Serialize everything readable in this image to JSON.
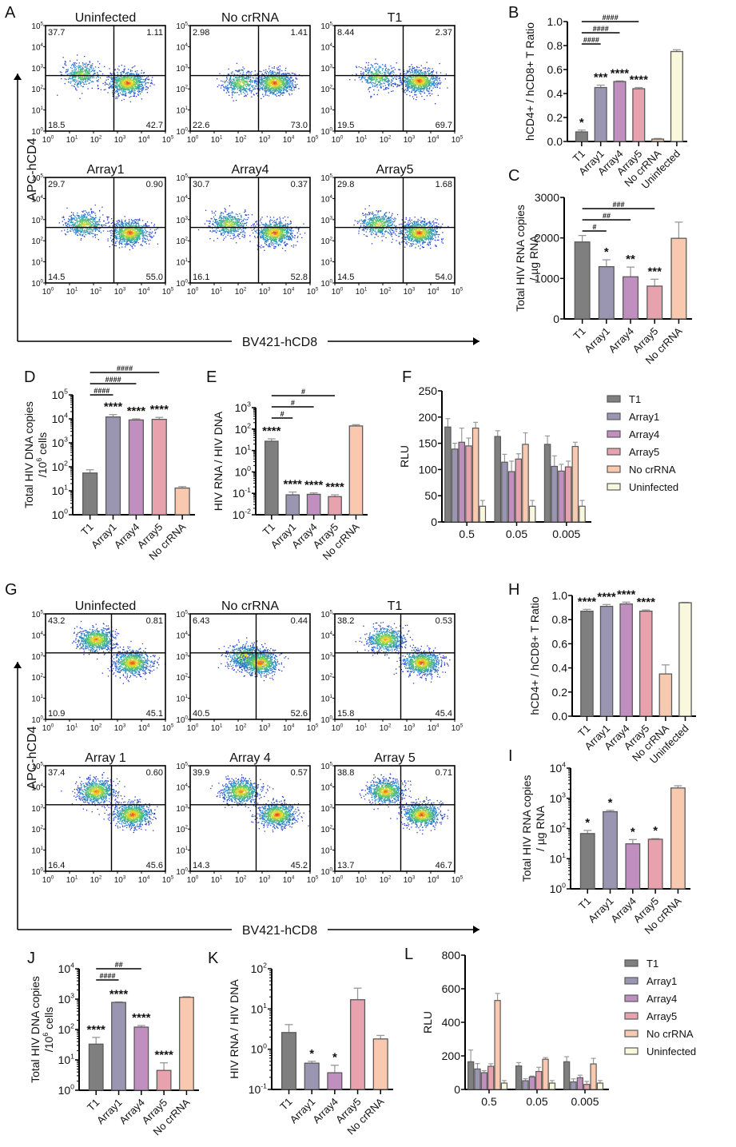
{
  "colors": {
    "T1": "#7f7f7f",
    "Array1": "#9a95b0",
    "Array4": "#c08fbf",
    "Array5": "#e8a2ae",
    "No crRNA": "#f8c9ae",
    "Uninfected": "#faf8dc",
    "edge": "#5a5a5a",
    "error": "#999999"
  },
  "chart_data": [
    {
      "panel": "A",
      "type": "scatter",
      "subtype": "flow-cytometry-quadrant",
      "xlabel": "BV421-hCD8",
      "ylabel": "APC-hCD4",
      "axis_ticks": [
        "10^0",
        "10^1",
        "10^2",
        "10^3",
        "10^4",
        "10^5"
      ],
      "plots": [
        {
          "title": "Uninfected",
          "ul": "37.7",
          "ur": "1.11",
          "ll": "18.5",
          "lr": "42.7",
          "clusters": [
            [
              1.5,
              2.7,
              0.5
            ],
            [
              3.4,
              2.3,
              1
            ]
          ]
        },
        {
          "title": "No crRNA",
          "ul": "2.98",
          "ur": "1.41",
          "ll": "22.6",
          "lr": "73.0",
          "clusters": [
            [
              2.1,
              2.3,
              0.5
            ],
            [
              3.5,
              2.3,
              1
            ]
          ]
        },
        {
          "title": "T1",
          "ul": "8.44",
          "ur": "2.37",
          "ll": "19.5",
          "lr": "69.7",
          "clusters": [
            [
              1.8,
              2.6,
              0.5
            ],
            [
              3.5,
              2.4,
              1
            ]
          ]
        },
        {
          "title": "Array1",
          "ul": "29.7",
          "ur": "0.90",
          "ll": "14.5",
          "lr": "55.0",
          "clusters": [
            [
              1.6,
              2.8,
              0.6
            ],
            [
              3.5,
              2.4,
              1
            ]
          ]
        },
        {
          "title": "Array4",
          "ul": "30.7",
          "ur": "0.37",
          "ll": "16.1",
          "lr": "52.8",
          "clusters": [
            [
              1.6,
              2.8,
              0.6
            ],
            [
              3.5,
              2.4,
              1
            ]
          ]
        },
        {
          "title": "Array5",
          "ul": "29.8",
          "ur": "1.68",
          "ll": "14.5",
          "lr": "54.0",
          "clusters": [
            [
              1.8,
              2.8,
              0.6
            ],
            [
              3.5,
              2.4,
              1
            ]
          ]
        }
      ]
    },
    {
      "panel": "B",
      "type": "bar",
      "ylabel": "hCD4+ / hCD8+ T Ratio",
      "scale": "linear",
      "ylim": [
        0,
        1.0
      ],
      "yticks": [
        "0.0",
        "0.2",
        "0.4",
        "0.6",
        "0.8",
        "1.0"
      ],
      "categories": [
        "T1",
        "Array1",
        "Array4",
        "Array5",
        "No crRNA",
        "Uninfected"
      ],
      "values": [
        0.08,
        0.45,
        0.5,
        0.44,
        0.02,
        0.75
      ],
      "errors": [
        0.015,
        0.02,
        0.005,
        0.01,
        0.005,
        0.015
      ],
      "stars": [
        "*",
        "***",
        "****",
        "****",
        "",
        ""
      ],
      "brackets": [
        {
          "from": "T1",
          "to": "Array1",
          "label": "####"
        },
        {
          "from": "T1",
          "to": "Array4",
          "label": "####"
        },
        {
          "from": "T1",
          "to": "Array5",
          "label": "####"
        }
      ]
    },
    {
      "panel": "C",
      "type": "bar",
      "ylabel": "Total HIV RNA copies / µg RNA",
      "scale": "linear",
      "ylim": [
        0,
        3000
      ],
      "yticks": [
        "0",
        "1000",
        "2000",
        "3000"
      ],
      "categories": [
        "T1",
        "Array1",
        "Array4",
        "Array5",
        "No crRNA"
      ],
      "values": [
        1900,
        1290,
        1040,
        810,
        1990
      ],
      "errors": [
        160,
        170,
        240,
        170,
        400
      ],
      "stars": [
        "",
        "*",
        "**",
        "***",
        ""
      ],
      "brackets": [
        {
          "from": "T1",
          "to": "Array1",
          "label": "#"
        },
        {
          "from": "T1",
          "to": "Array4",
          "label": "##"
        },
        {
          "from": "T1",
          "to": "Array5",
          "label": "###"
        }
      ]
    },
    {
      "panel": "D",
      "type": "bar",
      "ylabel": "Total HIV DNA copies /10^6 cells",
      "scale": "log",
      "ylim": [
        1,
        100000
      ],
      "yticks": [
        "10^0",
        "10^1",
        "10^2",
        "10^3",
        "10^4",
        "10^5"
      ],
      "categories": [
        "T1",
        "Array1",
        "Array4",
        "Array5",
        "No crRNA"
      ],
      "values": [
        55,
        12000,
        9000,
        9500,
        13
      ],
      "errors": [
        20,
        3000,
        1000,
        2000,
        2
      ],
      "stars": [
        "",
        "****",
        "****",
        "****",
        ""
      ],
      "brackets": [
        {
          "from": "T1",
          "to": "Array1",
          "label": "####"
        },
        {
          "from": "T1",
          "to": "Array4",
          "label": "####"
        },
        {
          "from": "T1",
          "to": "Array5",
          "label": "####"
        }
      ]
    },
    {
      "panel": "E",
      "type": "bar",
      "ylabel": "HIV RNA / HIV DNA",
      "scale": "log",
      "ylim": [
        0.01,
        1000
      ],
      "yticks": [
        "10^-2",
        "10^-1",
        "10^0",
        "10^1",
        "10^2",
        "10^3"
      ],
      "categories": [
        "T1",
        "Array1",
        "Array4",
        "Array5",
        "No crRNA"
      ],
      "values": [
        27,
        0.085,
        0.09,
        0.07,
        140
      ],
      "errors": [
        8,
        0.03,
        0.015,
        0.015,
        20
      ],
      "stars": [
        "****",
        "****",
        "****",
        "****",
        ""
      ],
      "brackets": [
        {
          "from": "T1",
          "to": "Array1",
          "label": "#"
        },
        {
          "from": "T1",
          "to": "Array4",
          "label": "#"
        },
        {
          "from": "T1",
          "to": "Array5",
          "label": "#"
        }
      ]
    },
    {
      "panel": "F",
      "type": "bar",
      "grouped": true,
      "ylabel": "RLU",
      "scale": "linear",
      "ylim": [
        0,
        250
      ],
      "yticks": [
        "0",
        "50",
        "100",
        "150",
        "200",
        "250"
      ],
      "categories": [
        "0.5",
        "0.05",
        "0.005"
      ],
      "legend_position": "right",
      "series": [
        {
          "name": "T1",
          "values": [
            181,
            163,
            148
          ],
          "errors": [
            16,
            11,
            16
          ]
        },
        {
          "name": "Array1",
          "values": [
            139,
            114,
            106
          ],
          "errors": [
            11,
            15,
            20
          ]
        },
        {
          "name": "Array4",
          "values": [
            152,
            96,
            97
          ],
          "errors": [
            27,
            20,
            13
          ]
        },
        {
          "name": "Array5",
          "values": [
            145,
            120,
            105
          ],
          "errors": [
            15,
            10,
            11
          ]
        },
        {
          "name": "No crRNA",
          "values": [
            179,
            148,
            144
          ],
          "errors": [
            11,
            22,
            8
          ]
        },
        {
          "name": "Uninfected",
          "values": [
            30,
            30,
            30
          ],
          "errors": [
            11,
            11,
            11
          ]
        }
      ]
    },
    {
      "panel": "G",
      "type": "scatter",
      "subtype": "flow-cytometry-quadrant",
      "xlabel": "BV421-hCD8",
      "ylabel": "APC-hCD4",
      "axis_ticks": [
        "10^0",
        "10^1",
        "10^2",
        "10^3",
        "10^4",
        "10^5"
      ],
      "plots": [
        {
          "title": "Uninfected",
          "ul": "43.2",
          "ur": "0.81",
          "ll": "10.9",
          "lr": "45.1",
          "clusters": [
            [
              2.1,
              3.8,
              0.9
            ],
            [
              3.6,
              2.7,
              1
            ]
          ]
        },
        {
          "title": "No crRNA",
          "ul": "6.43",
          "ur": "0.44",
          "ll": "40.5",
          "lr": "52.6",
          "clusters": [
            [
              2.3,
              3.0,
              0.7
            ],
            [
              2.9,
              2.7,
              1
            ]
          ]
        },
        {
          "title": "T1",
          "ul": "38.2",
          "ur": "0.53",
          "ll": "15.8",
          "lr": "45.4",
          "clusters": [
            [
              2.1,
              3.8,
              0.8
            ],
            [
              3.6,
              2.7,
              1
            ]
          ]
        },
        {
          "title": "Array 1",
          "ul": "37.4",
          "ur": "0.60",
          "ll": "16.4",
          "lr": "45.6",
          "clusters": [
            [
              2.1,
              3.8,
              0.9
            ],
            [
              3.6,
              2.7,
              1
            ]
          ]
        },
        {
          "title": "Array 4",
          "ul": "39.9",
          "ur": "0.57",
          "ll": "14.3",
          "lr": "45.2",
          "clusters": [
            [
              2.1,
              3.8,
              0.9
            ],
            [
              3.6,
              2.7,
              1
            ]
          ]
        },
        {
          "title": "Array 5",
          "ul": "38.8",
          "ur": "0.71",
          "ll": "13.7",
          "lr": "46.7",
          "clusters": [
            [
              2.1,
              3.8,
              0.9
            ],
            [
              3.6,
              2.7,
              1
            ]
          ]
        }
      ]
    },
    {
      "panel": "H",
      "type": "bar",
      "ylabel": "hCD4+ / hCD8+ T Ratio",
      "scale": "linear",
      "ylim": [
        0,
        1.0
      ],
      "yticks": [
        "0.0",
        "0.2",
        "0.4",
        "0.6",
        "0.8",
        "1.0"
      ],
      "categories": [
        "T1",
        "Array1",
        "Array4",
        "Array5",
        "No crRNA",
        "Uninfected"
      ],
      "values": [
        0.87,
        0.91,
        0.93,
        0.87,
        0.35,
        0.94
      ],
      "errors": [
        0.015,
        0.015,
        0.015,
        0.01,
        0.075,
        0.003
      ],
      "stars": [
        "****",
        "****",
        "****",
        "****",
        "",
        ""
      ],
      "brackets": []
    },
    {
      "panel": "I",
      "type": "bar",
      "ylabel": "Total HIV RNA copies / µg RNA",
      "scale": "log",
      "ylim": [
        1,
        10000
      ],
      "yticks": [
        "10^0",
        "10^1",
        "10^2",
        "10^3",
        "10^4"
      ],
      "categories": [
        "T1",
        "Array1",
        "Array4",
        "Array5",
        "No crRNA"
      ],
      "values": [
        68,
        360,
        31,
        44,
        2200
      ],
      "errors": [
        18,
        40,
        12,
        2,
        400
      ],
      "stars": [
        "*",
        "*",
        "*",
        "*",
        ""
      ],
      "brackets": []
    },
    {
      "panel": "J",
      "type": "bar",
      "ylabel": "Total HIV DNA copies /10^6 cells",
      "scale": "log",
      "ylim": [
        1,
        10000
      ],
      "yticks": [
        "10^0",
        "10^1",
        "10^2",
        "10^3",
        "10^4"
      ],
      "categories": [
        "T1",
        "Array1",
        "Array4",
        "Array5",
        "No crRNA"
      ],
      "values": [
        33,
        780,
        120,
        4.5,
        1150
      ],
      "errors": [
        22,
        30,
        15,
        3.5,
        50
      ],
      "stars": [
        "****",
        "****",
        "****",
        "****",
        ""
      ],
      "brackets": [
        {
          "from": "T1",
          "to": "Array1",
          "label": "####"
        },
        {
          "from": "T1",
          "to": "Array4",
          "label": "##"
        }
      ]
    },
    {
      "panel": "K",
      "type": "bar",
      "ylabel": "HIV RNA / HIV DNA",
      "scale": "log",
      "ylim": [
        0.1,
        100
      ],
      "yticks": [
        "10^-1",
        "10^0",
        "10^1",
        "10^2"
      ],
      "categories": [
        "T1",
        "Array1",
        "Array4",
        "Array5",
        "No crRNA"
      ],
      "values": [
        2.6,
        0.45,
        0.26,
        17,
        1.8
      ],
      "errors": [
        1.5,
        0.05,
        0.14,
        16,
        0.4
      ],
      "stars": [
        "",
        "*",
        "*",
        "",
        ""
      ],
      "brackets": []
    },
    {
      "panel": "L",
      "type": "bar",
      "grouped": true,
      "ylabel": "RLU",
      "scale": "linear",
      "ylim": [
        0,
        800
      ],
      "yticks": [
        "0",
        "200",
        "400",
        "600",
        "800"
      ],
      "categories": [
        "0.5",
        "0.05",
        "0.005"
      ],
      "legend_position": "right",
      "series": [
        {
          "name": "T1",
          "values": [
            165,
            140,
            165
          ],
          "errors": [
            70,
            20,
            30
          ]
        },
        {
          "name": "Array1",
          "values": [
            122,
            52,
            45
          ],
          "errors": [
            32,
            12,
            18
          ]
        },
        {
          "name": "Array4",
          "values": [
            100,
            75,
            70
          ],
          "errors": [
            12,
            5,
            15
          ]
        },
        {
          "name": "Array5",
          "values": [
            138,
            107,
            30
          ],
          "errors": [
            15,
            25,
            18
          ]
        },
        {
          "name": "No crRNA",
          "values": [
            530,
            180,
            152
          ],
          "errors": [
            42,
            10,
            33
          ]
        },
        {
          "name": "Uninfected",
          "values": [
            38,
            38,
            38
          ],
          "errors": [
            15,
            15,
            15
          ]
        }
      ]
    }
  ]
}
